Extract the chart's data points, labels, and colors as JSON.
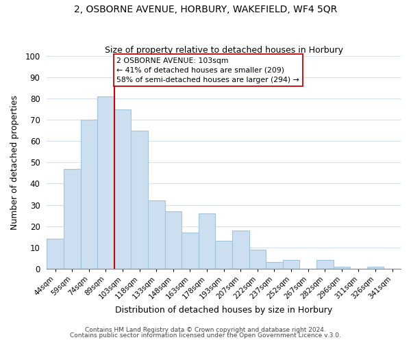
{
  "title1": "2, OSBORNE AVENUE, HORBURY, WAKEFIELD, WF4 5QR",
  "title2": "Size of property relative to detached houses in Horbury",
  "xlabel": "Distribution of detached houses by size in Horbury",
  "ylabel": "Number of detached properties",
  "bin_labels": [
    "44sqm",
    "59sqm",
    "74sqm",
    "89sqm",
    "103sqm",
    "118sqm",
    "133sqm",
    "148sqm",
    "163sqm",
    "178sqm",
    "193sqm",
    "207sqm",
    "222sqm",
    "237sqm",
    "252sqm",
    "267sqm",
    "282sqm",
    "296sqm",
    "311sqm",
    "326sqm",
    "341sqm"
  ],
  "bar_heights": [
    14,
    47,
    70,
    81,
    75,
    65,
    32,
    27,
    17,
    26,
    13,
    18,
    9,
    3,
    4,
    0,
    4,
    1,
    0,
    1,
    0
  ],
  "bar_color": "#ccdff0",
  "bar_edge_color": "#a0c4de",
  "highlight_bar_index": 4,
  "highlight_line_color": "#cc0000",
  "ylim": [
    0,
    100
  ],
  "yticks": [
    0,
    10,
    20,
    30,
    40,
    50,
    60,
    70,
    80,
    90,
    100
  ],
  "annotation_title": "2 OSBORNE AVENUE: 103sqm",
  "annotation_line1": "← 41% of detached houses are smaller (209)",
  "annotation_line2": "58% of semi-detached houses are larger (294) →",
  "annotation_box_color": "#ffffff",
  "annotation_box_edge": "#cc0000",
  "footer1": "Contains HM Land Registry data © Crown copyright and database right 2024.",
  "footer2": "Contains public sector information licensed under the Open Government Licence v.3.0.",
  "background_color": "#ffffff",
  "grid_color": "#d4dff0"
}
